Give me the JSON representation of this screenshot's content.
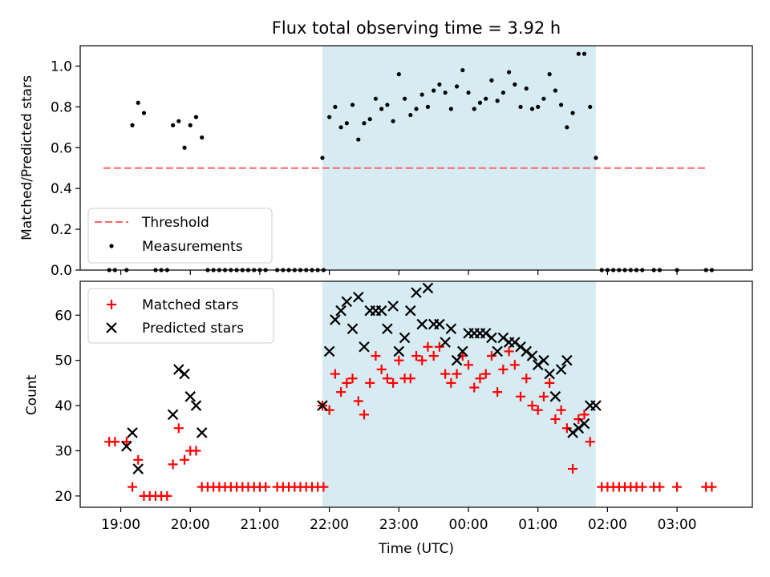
{
  "title": "Flux total observing time = 3.92 h",
  "colors": {
    "threshold": "#ff6666",
    "measurement": "#000000",
    "matched": "#ff0000",
    "predicted": "#000000",
    "observing_window": "#add8e6"
  },
  "chart_data": [
    {
      "type": "scatter",
      "subplot": "top",
      "xlabel": "",
      "ylabel": "Matched/Predicted stars",
      "ylim": [
        0,
        1.1
      ],
      "yticks": [
        "0.0",
        "0.2",
        "0.4",
        "0.6",
        "0.8",
        "1.0"
      ],
      "grid": false,
      "legend_position": "lower-left",
      "observing_window": {
        "start": "21:54",
        "end": "01:50"
      },
      "threshold": {
        "name": "Threshold",
        "value": 0.5,
        "x_start": "18:45",
        "x_end": "03:25"
      },
      "series": [
        {
          "name": "Measurements",
          "points": [
            [
              "18:50",
              0
            ],
            [
              "18:55",
              0
            ],
            [
              "19:05",
              0
            ],
            [
              "19:10",
              0.71
            ],
            [
              "19:15",
              0.82
            ],
            [
              "19:20",
              0.77
            ],
            [
              "19:30",
              0
            ],
            [
              "19:35",
              0
            ],
            [
              "19:40",
              0
            ],
            [
              "19:45",
              0.71
            ],
            [
              "19:50",
              0.73
            ],
            [
              "19:55",
              0.6
            ],
            [
              "20:00",
              0.71
            ],
            [
              "20:05",
              0.75
            ],
            [
              "20:10",
              0.65
            ],
            [
              "20:15",
              0
            ],
            [
              "20:20",
              0
            ],
            [
              "20:25",
              0
            ],
            [
              "20:30",
              0
            ],
            [
              "20:35",
              0
            ],
            [
              "20:40",
              0
            ],
            [
              "20:45",
              0
            ],
            [
              "20:50",
              0
            ],
            [
              "20:55",
              0
            ],
            [
              "21:00",
              0
            ],
            [
              "21:05",
              0
            ],
            [
              "21:15",
              0
            ],
            [
              "21:20",
              0
            ],
            [
              "21:25",
              0
            ],
            [
              "21:30",
              0
            ],
            [
              "21:35",
              0
            ],
            [
              "21:40",
              0
            ],
            [
              "21:45",
              0
            ],
            [
              "21:50",
              0
            ],
            [
              "21:55",
              0
            ],
            [
              "21:54",
              0.55
            ],
            [
              "22:00",
              0.75
            ],
            [
              "22:05",
              0.8
            ],
            [
              "22:10",
              0.7
            ],
            [
              "22:15",
              0.72
            ],
            [
              "22:20",
              0.81
            ],
            [
              "22:25",
              0.64
            ],
            [
              "22:30",
              0.72
            ],
            [
              "22:35",
              0.74
            ],
            [
              "22:40",
              0.84
            ],
            [
              "22:45",
              0.79
            ],
            [
              "22:50",
              0.81
            ],
            [
              "22:55",
              0.73
            ],
            [
              "23:00",
              0.96
            ],
            [
              "23:05",
              0.84
            ],
            [
              "23:10",
              0.76
            ],
            [
              "23:15",
              0.79
            ],
            [
              "23:20",
              0.86
            ],
            [
              "23:25",
              0.8
            ],
            [
              "23:30",
              0.88
            ],
            [
              "23:35",
              0.91
            ],
            [
              "23:40",
              0.87
            ],
            [
              "23:45",
              0.79
            ],
            [
              "23:50",
              0.9
            ],
            [
              "23:55",
              0.98
            ],
            [
              "00:00",
              0.87
            ],
            [
              "00:05",
              0.79
            ],
            [
              "00:10",
              0.82
            ],
            [
              "00:15",
              0.84
            ],
            [
              "00:20",
              0.93
            ],
            [
              "00:25",
              0.83
            ],
            [
              "00:30",
              0.87
            ],
            [
              "00:35",
              0.97
            ],
            [
              "00:40",
              0.91
            ],
            [
              "00:45",
              0.8
            ],
            [
              "00:50",
              0.89
            ],
            [
              "00:55",
              0.79
            ],
            [
              "01:00",
              0.8
            ],
            [
              "01:05",
              0.84
            ],
            [
              "01:10",
              0.96
            ],
            [
              "01:15",
              0.88
            ],
            [
              "01:20",
              0.81
            ],
            [
              "01:25",
              0.7
            ],
            [
              "01:30",
              0.77
            ],
            [
              "01:35",
              1.06
            ],
            [
              "01:40",
              1.06
            ],
            [
              "01:45",
              0.8
            ],
            [
              "01:50",
              0.55
            ],
            [
              "01:55",
              0
            ],
            [
              "02:00",
              0
            ],
            [
              "02:05",
              0
            ],
            [
              "02:10",
              0
            ],
            [
              "02:15",
              0
            ],
            [
              "02:20",
              0
            ],
            [
              "02:25",
              0
            ],
            [
              "02:30",
              0
            ],
            [
              "02:40",
              0
            ],
            [
              "02:45",
              0
            ],
            [
              "03:00",
              0
            ],
            [
              "03:25",
              0
            ],
            [
              "03:30",
              0
            ]
          ]
        }
      ]
    },
    {
      "type": "scatter",
      "subplot": "bottom",
      "xlabel": "Time (UTC)",
      "ylabel": "Count",
      "ylim": [
        17.5,
        67.5
      ],
      "yticks": [
        "20",
        "30",
        "40",
        "50",
        "60"
      ],
      "xlim": [
        "18:25",
        "04:05"
      ],
      "xticks": [
        "19:00",
        "20:00",
        "21:00",
        "22:00",
        "23:00",
        "00:00",
        "01:00",
        "02:00",
        "03:00"
      ],
      "grid": false,
      "legend_position": "upper-left",
      "observing_window": {
        "start": "21:54",
        "end": "01:50"
      },
      "series": [
        {
          "name": "Matched stars",
          "marker": "+",
          "points": [
            [
              "18:50",
              32
            ],
            [
              "18:55",
              32
            ],
            [
              "19:05",
              32
            ],
            [
              "19:10",
              22
            ],
            [
              "19:15",
              28
            ],
            [
              "19:20",
              20
            ],
            [
              "19:25",
              20
            ],
            [
              "19:30",
              20
            ],
            [
              "19:35",
              20
            ],
            [
              "19:40",
              20
            ],
            [
              "19:45",
              27
            ],
            [
              "19:50",
              35
            ],
            [
              "19:55",
              28
            ],
            [
              "20:00",
              30
            ],
            [
              "20:05",
              30
            ],
            [
              "20:10",
              22
            ],
            [
              "20:15",
              22
            ],
            [
              "20:20",
              22
            ],
            [
              "20:25",
              22
            ],
            [
              "20:30",
              22
            ],
            [
              "20:35",
              22
            ],
            [
              "20:40",
              22
            ],
            [
              "20:45",
              22
            ],
            [
              "20:50",
              22
            ],
            [
              "20:55",
              22
            ],
            [
              "21:00",
              22
            ],
            [
              "21:05",
              22
            ],
            [
              "21:15",
              22
            ],
            [
              "21:20",
              22
            ],
            [
              "21:25",
              22
            ],
            [
              "21:30",
              22
            ],
            [
              "21:35",
              22
            ],
            [
              "21:40",
              22
            ],
            [
              "21:45",
              22
            ],
            [
              "21:50",
              22
            ],
            [
              "21:55",
              22
            ],
            [
              "21:54",
              40
            ],
            [
              "22:00",
              39
            ],
            [
              "22:05",
              47
            ],
            [
              "22:10",
              43
            ],
            [
              "22:15",
              45
            ],
            [
              "22:20",
              46
            ],
            [
              "22:25",
              41
            ],
            [
              "22:30",
              38
            ],
            [
              "22:35",
              45
            ],
            [
              "22:40",
              51
            ],
            [
              "22:45",
              48
            ],
            [
              "22:50",
              46
            ],
            [
              "22:55",
              45
            ],
            [
              "23:00",
              50
            ],
            [
              "23:05",
              46
            ],
            [
              "23:10",
              46
            ],
            [
              "23:15",
              51
            ],
            [
              "23:20",
              50
            ],
            [
              "23:25",
              53
            ],
            [
              "23:30",
              51
            ],
            [
              "23:35",
              53
            ],
            [
              "23:40",
              47
            ],
            [
              "23:45",
              45
            ],
            [
              "23:50",
              47
            ],
            [
              "23:55",
              51
            ],
            [
              "00:00",
              49
            ],
            [
              "00:05",
              44
            ],
            [
              "00:10",
              46
            ],
            [
              "00:15",
              47
            ],
            [
              "00:20",
              51
            ],
            [
              "00:25",
              43
            ],
            [
              "00:30",
              48
            ],
            [
              "00:35",
              52
            ],
            [
              "00:40",
              49
            ],
            [
              "00:45",
              42
            ],
            [
              "00:50",
              46
            ],
            [
              "00:55",
              40
            ],
            [
              "01:00",
              39
            ],
            [
              "01:05",
              42
            ],
            [
              "01:10",
              45
            ],
            [
              "01:15",
              37
            ],
            [
              "01:20",
              39
            ],
            [
              "01:25",
              35
            ],
            [
              "01:30",
              26
            ],
            [
              "01:35",
              37
            ],
            [
              "01:40",
              38
            ],
            [
              "01:45",
              32
            ],
            [
              "01:55",
              22
            ],
            [
              "02:00",
              22
            ],
            [
              "02:05",
              22
            ],
            [
              "02:10",
              22
            ],
            [
              "02:15",
              22
            ],
            [
              "02:20",
              22
            ],
            [
              "02:25",
              22
            ],
            [
              "02:30",
              22
            ],
            [
              "02:40",
              22
            ],
            [
              "02:45",
              22
            ],
            [
              "03:00",
              22
            ],
            [
              "03:25",
              22
            ],
            [
              "03:30",
              22
            ]
          ]
        },
        {
          "name": "Predicted stars",
          "marker": "x",
          "points": [
            [
              "19:05",
              31
            ],
            [
              "19:10",
              34
            ],
            [
              "19:15",
              26
            ],
            [
              "19:45",
              38
            ],
            [
              "19:50",
              48
            ],
            [
              "19:55",
              47
            ],
            [
              "20:00",
              42
            ],
            [
              "20:05",
              40
            ],
            [
              "20:10",
              34
            ],
            [
              "21:54",
              40
            ],
            [
              "22:00",
              52
            ],
            [
              "22:05",
              59
            ],
            [
              "22:10",
              61
            ],
            [
              "22:15",
              63
            ],
            [
              "22:20",
              57
            ],
            [
              "22:25",
              64
            ],
            [
              "22:30",
              53
            ],
            [
              "22:35",
              61
            ],
            [
              "22:40",
              61
            ],
            [
              "22:45",
              61
            ],
            [
              "22:50",
              57
            ],
            [
              "22:55",
              62
            ],
            [
              "23:00",
              52
            ],
            [
              "23:05",
              55
            ],
            [
              "23:10",
              61
            ],
            [
              "23:15",
              65
            ],
            [
              "23:20",
              58
            ],
            [
              "23:25",
              66
            ],
            [
              "23:30",
              58
            ],
            [
              "23:35",
              58
            ],
            [
              "23:40",
              54
            ],
            [
              "23:45",
              57
            ],
            [
              "23:50",
              50
            ],
            [
              "23:55",
              52
            ],
            [
              "00:00",
              56
            ],
            [
              "00:05",
              56
            ],
            [
              "00:10",
              56
            ],
            [
              "00:15",
              56
            ],
            [
              "00:20",
              55
            ],
            [
              "00:25",
              52
            ],
            [
              "00:30",
              55
            ],
            [
              "00:35",
              54
            ],
            [
              "00:40",
              54
            ],
            [
              "00:45",
              53
            ],
            [
              "00:50",
              52
            ],
            [
              "00:55",
              51
            ],
            [
              "01:00",
              49
            ],
            [
              "01:05",
              50
            ],
            [
              "01:10",
              47
            ],
            [
              "01:15",
              42
            ],
            [
              "01:20",
              48
            ],
            [
              "01:25",
              50
            ],
            [
              "01:30",
              34
            ],
            [
              "01:35",
              35
            ],
            [
              "01:40",
              36
            ],
            [
              "01:45",
              40
            ],
            [
              "01:50",
              40
            ]
          ]
        }
      ]
    }
  ]
}
